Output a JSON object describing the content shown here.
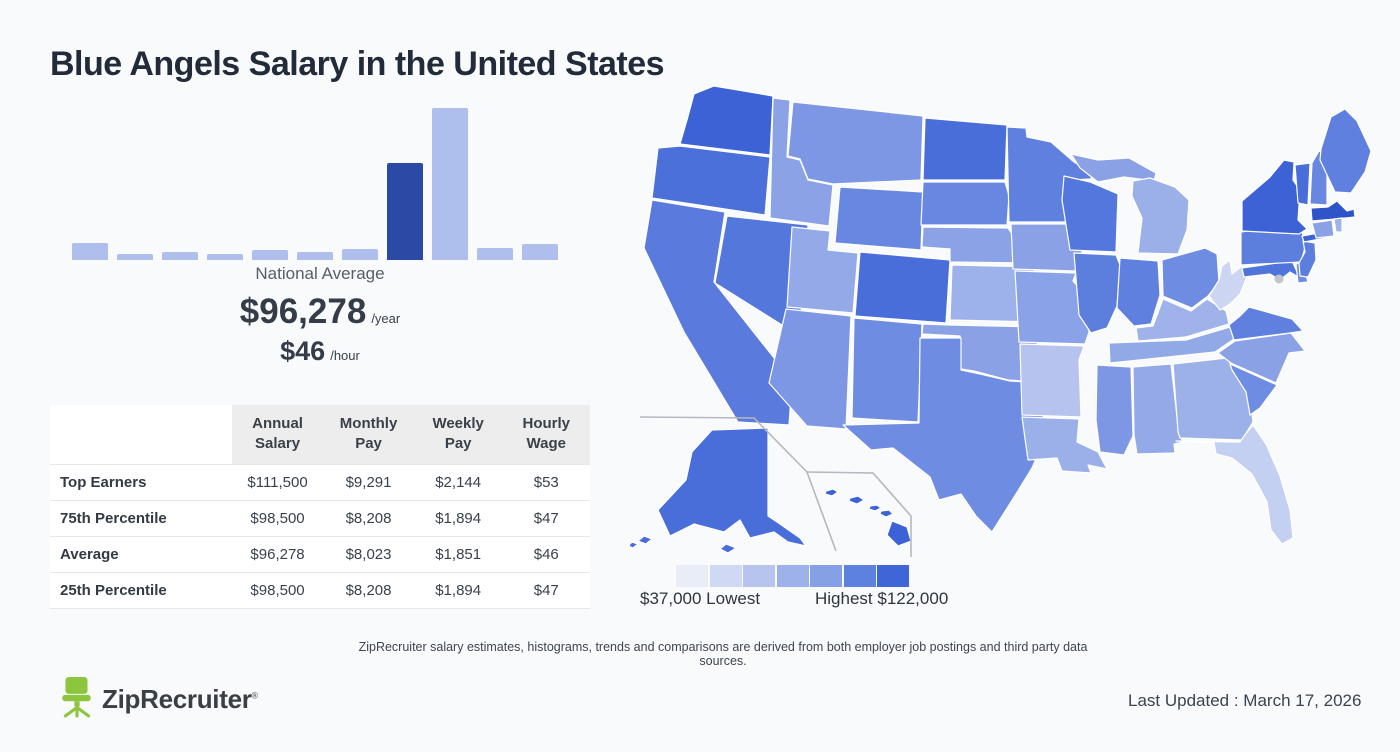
{
  "page": {
    "title": "Blue Angels Salary in the United States",
    "background_color": "#f8fafc",
    "disclaimer": "ZipRecruiter salary estimates, histograms, trends and comparisons are derived from both employer job postings and third party data sources.",
    "last_updated": "Last Updated : March 17, 2026",
    "brand": {
      "name": "ZipRecruiter",
      "registered_mark": "®",
      "logo_icon": "chair-icon",
      "logo_color": "#8cc63e",
      "wordmark_color": "#3a3e45"
    }
  },
  "national_average": {
    "label": "National Average",
    "annual": "$96,278",
    "annual_unit": "/year",
    "hourly": "$46",
    "hourly_unit": "/hour"
  },
  "salary_table": {
    "row_header": "",
    "headers": [
      "Annual Salary",
      "Monthly Pay",
      "Weekly Pay",
      "Hourly Wage"
    ],
    "rows": [
      {
        "label": "Top Earners",
        "values": [
          "$111,500",
          "$9,291",
          "$2,144",
          "$53"
        ]
      },
      {
        "label": "75th Percentile",
        "values": [
          "$98,500",
          "$8,208",
          "$1,894",
          "$47"
        ]
      },
      {
        "label": "Average",
        "values": [
          "$96,278",
          "$8,023",
          "$1,851",
          "$46"
        ]
      },
      {
        "label": "25th Percentile",
        "values": [
          "$98,500",
          "$8,208",
          "$1,894",
          "$47"
        ]
      }
    ]
  },
  "chart_data": [
    {
      "type": "bar",
      "title": "Salary distribution histogram",
      "xlabel": "salary bins (unlabeled)",
      "ylabel": "frequency (unlabeled)",
      "values": [
        17,
        6,
        8,
        6,
        10,
        8,
        11,
        97,
        152,
        12,
        16
      ],
      "value_unit": "relative bar height px (no axis labels shown)",
      "bar_color": "#aebeed",
      "highlight_index": 7,
      "highlight_color": "#2a4aa5"
    },
    {
      "type": "table",
      "title": "Blue Angels salary percentiles",
      "columns": [
        "",
        "Annual Salary",
        "Monthly Pay",
        "Weekly Pay",
        "Hourly Wage"
      ],
      "rows": [
        [
          "Top Earners",
          "$111,500",
          "$9,291",
          "$2,144",
          "$53"
        ],
        [
          "75th Percentile",
          "$98,500",
          "$8,208",
          "$1,894",
          "$47"
        ],
        [
          "Average",
          "$96,278",
          "$8,023",
          "$1,851",
          "$46"
        ],
        [
          "25th Percentile",
          "$98,500",
          "$8,208",
          "$1,894",
          "$47"
        ]
      ]
    },
    {
      "type": "heatmap",
      "subtype": "us-state-choropleth",
      "title": "Salary by state",
      "min": {
        "value": 37000,
        "label": "$37,000 Lowest"
      },
      "max": {
        "value": 122000,
        "label": "Highest $122,000"
      },
      "scale_colors": [
        "#e9edf8",
        "#cfd9f3",
        "#b7c5ee",
        "#9db2ea",
        "#86a0e6",
        "#5c81de",
        "#3f66d6"
      ],
      "note": "individual state values are not labeled on the map"
    }
  ],
  "map": {
    "legend": {
      "min_label": "$37,000 Lowest",
      "max_label": "Highest $122,000",
      "swatch_colors": [
        "#e9edf8",
        "#cfd9f3",
        "#b7c5ee",
        "#9db2ea",
        "#86a0e6",
        "#5c81de",
        "#3f66d6"
      ]
    },
    "states": [
      {
        "id": "WA",
        "fill": "#3c62d5"
      },
      {
        "id": "OR",
        "fill": "#4c70da"
      },
      {
        "id": "CA",
        "fill": "#5a7bdd"
      },
      {
        "id": "NV",
        "fill": "#5477dc"
      },
      {
        "id": "ID",
        "fill": "#8ba2e7"
      },
      {
        "id": "MT",
        "fill": "#7e97e4"
      },
      {
        "id": "WY",
        "fill": "#6887e0"
      },
      {
        "id": "UT",
        "fill": "#94a9e8"
      },
      {
        "id": "CO",
        "fill": "#4a6ed9"
      },
      {
        "id": "AZ",
        "fill": "#7e97e4"
      },
      {
        "id": "NM",
        "fill": "#6d8ce2"
      },
      {
        "id": "ND",
        "fill": "#4a6ed9"
      },
      {
        "id": "SD",
        "fill": "#6887e0"
      },
      {
        "id": "NE",
        "fill": "#8ba2e7"
      },
      {
        "id": "KS",
        "fill": "#9db1ea"
      },
      {
        "id": "OK",
        "fill": "#8aa1e6"
      },
      {
        "id": "TX",
        "fill": "#6d8ce2"
      },
      {
        "id": "MN",
        "fill": "#6080df"
      },
      {
        "id": "IA",
        "fill": "#8aa1e6"
      },
      {
        "id": "MO",
        "fill": "#8aa2e7"
      },
      {
        "id": "AR",
        "fill": "#b5c3ee"
      },
      {
        "id": "LA",
        "fill": "#9bafe9"
      },
      {
        "id": "WI",
        "fill": "#5377dc"
      },
      {
        "id": "IL",
        "fill": "#5c7edd"
      },
      {
        "id": "MI-UP",
        "fill": "#8aa1e6"
      },
      {
        "id": "MI",
        "fill": "#9bafe9"
      },
      {
        "id": "IN",
        "fill": "#6080df"
      },
      {
        "id": "OH",
        "fill": "#6d8ce2"
      },
      {
        "id": "KY",
        "fill": "#9fb3ea"
      },
      {
        "id": "TN",
        "fill": "#92a9e8"
      },
      {
        "id": "MS",
        "fill": "#7e97e4"
      },
      {
        "id": "AL",
        "fill": "#94aae8"
      },
      {
        "id": "GA",
        "fill": "#9db1e9"
      },
      {
        "id": "FL",
        "fill": "#c3d0f2"
      },
      {
        "id": "SC",
        "fill": "#6d8ce2"
      },
      {
        "id": "NC",
        "fill": "#8aa1e6"
      },
      {
        "id": "VA",
        "fill": "#6080df"
      },
      {
        "id": "WV",
        "fill": "#ccd6f3"
      },
      {
        "id": "MD",
        "fill": "#5074da"
      },
      {
        "id": "DE",
        "fill": "#6d8ce2"
      },
      {
        "id": "PA",
        "fill": "#5c7edd"
      },
      {
        "id": "NJ",
        "fill": "#5c7edd"
      },
      {
        "id": "NY",
        "fill": "#3c62d5"
      },
      {
        "id": "NY-LI",
        "fill": "#3c62d5"
      },
      {
        "id": "VT",
        "fill": "#4a6ed9"
      },
      {
        "id": "NH",
        "fill": "#6887e0"
      },
      {
        "id": "ME",
        "fill": "#6080df"
      },
      {
        "id": "MA",
        "fill": "#2f53c8"
      },
      {
        "id": "CT",
        "fill": "#8aa1e6"
      },
      {
        "id": "RI",
        "fill": "#9db1ea"
      },
      {
        "id": "AK",
        "fill": "#4a6ed9"
      },
      {
        "id": "HI",
        "fill": "#3c62d5"
      },
      {
        "id": "DC",
        "fill": "#c2c5cb"
      }
    ]
  }
}
